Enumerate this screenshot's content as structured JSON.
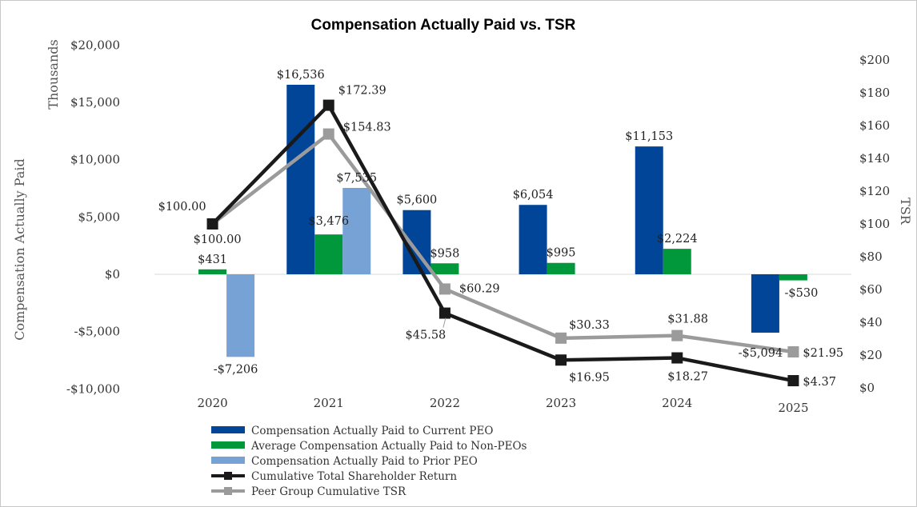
{
  "chart_data": {
    "type": "bar",
    "title": "Compensation Actually Paid vs. TSR",
    "categories": [
      "2020",
      "2021",
      "2022",
      "2023",
      "2024",
      "2025"
    ],
    "left_axis": {
      "label": "Compensation Actually Paid",
      "unit_label": "Thousands",
      "ylim": [
        -10000,
        20000
      ],
      "ticks": [
        {
          "value": 20000,
          "label": "$20,000"
        },
        {
          "value": 15000,
          "label": "$15,000"
        },
        {
          "value": 10000,
          "label": "$10,000"
        },
        {
          "value": 5000,
          "label": "$5,000"
        },
        {
          "value": 0,
          "label": "$0"
        },
        {
          "value": -5000,
          "label": "-$5,000"
        },
        {
          "value": -10000,
          "label": "-$10,000"
        }
      ]
    },
    "right_axis": {
      "label": "TSR",
      "ylim": [
        0,
        200
      ],
      "ticks": [
        {
          "value": 200,
          "label": "$200"
        },
        {
          "value": 180,
          "label": "$180"
        },
        {
          "value": 160,
          "label": "$160"
        },
        {
          "value": 140,
          "label": "$140"
        },
        {
          "value": 120,
          "label": "$120"
        },
        {
          "value": 100,
          "label": "$100"
        },
        {
          "value": 80,
          "label": "$80"
        },
        {
          "value": 60,
          "label": "$60"
        },
        {
          "value": 40,
          "label": "$40"
        },
        {
          "value": 20,
          "label": "$20"
        },
        {
          "value": 0,
          "label": "$0"
        }
      ]
    },
    "bar_series": [
      {
        "name": "Compensation Actually Paid to Current PEO",
        "color": "#004597",
        "values": [
          null,
          16536,
          5600,
          6054,
          11153,
          -5094
        ],
        "labels": [
          "",
          "$16,536",
          "$5,600",
          "$6,054",
          "$11,153",
          "-$5,094"
        ]
      },
      {
        "name": "Average Compensation Actually Paid to Non-PEOs",
        "color": "#00983a",
        "values": [
          431,
          3476,
          958,
          995,
          2224,
          -530
        ],
        "labels": [
          "$431",
          "$3,476",
          "$958",
          "$995",
          "$2,224",
          "-$530"
        ]
      },
      {
        "name": "Compensation Actually Paid to Prior PEO",
        "color": "#76a2d6",
        "values": [
          -7206,
          7535,
          null,
          null,
          null,
          null
        ],
        "labels": [
          "-$7,206",
          "$7,535",
          "",
          "",
          "",
          ""
        ]
      }
    ],
    "line_series": [
      {
        "name": "Cumulative Total Shareholder Return",
        "color": "#1a1a1a",
        "values": [
          100.0,
          172.39,
          45.58,
          16.95,
          18.27,
          4.37
        ],
        "labels": [
          "$100.00",
          "$172.39",
          "$45.58",
          "$16.95",
          "$18.27",
          "$4.37"
        ]
      },
      {
        "name": "Peer Group Cumulative TSR",
        "color": "#9b9b9b",
        "values": [
          100.0,
          154.83,
          60.29,
          30.33,
          31.88,
          21.95
        ],
        "labels": [
          "$100.00",
          "$154.83",
          "$60.29",
          "$30.33",
          "$31.88",
          "$21.95"
        ]
      }
    ],
    "legend": {
      "position": "bottom-center",
      "entries": [
        "Compensation Actually Paid to Current PEO",
        "Average Compensation Actually Paid to Non-PEOs",
        "Compensation Actually Paid to Prior PEO",
        "Cumulative Total Shareholder Return",
        "Peer Group Cumulative TSR"
      ]
    }
  }
}
